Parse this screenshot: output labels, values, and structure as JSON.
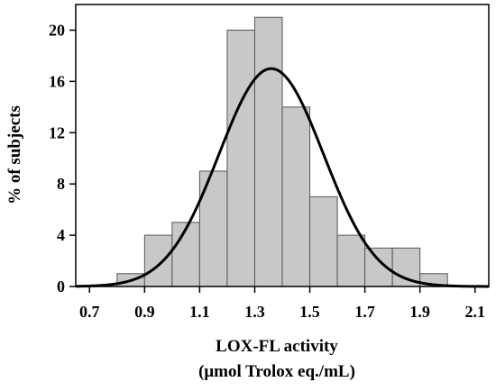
{
  "chart_data": {
    "type": "bar",
    "subtype": "histogram",
    "bins": [
      {
        "x0": 0.8,
        "x1": 0.9,
        "value": 1
      },
      {
        "x0": 0.9,
        "x1": 1.0,
        "value": 4
      },
      {
        "x0": 1.0,
        "x1": 1.1,
        "value": 5
      },
      {
        "x0": 1.1,
        "x1": 1.2,
        "value": 9
      },
      {
        "x0": 1.2,
        "x1": 1.3,
        "value": 20
      },
      {
        "x0": 1.3,
        "x1": 1.4,
        "value": 21
      },
      {
        "x0": 1.4,
        "x1": 1.5,
        "value": 14
      },
      {
        "x0": 1.5,
        "x1": 1.6,
        "value": 7
      },
      {
        "x0": 1.6,
        "x1": 1.7,
        "value": 4
      },
      {
        "x0": 1.7,
        "x1": 1.8,
        "value": 3
      },
      {
        "x0": 1.8,
        "x1": 1.9,
        "value": 3
      },
      {
        "x0": 1.9,
        "x1": 2.0,
        "value": 1
      }
    ],
    "curve": {
      "type": "normal",
      "mean": 1.36,
      "sd": 0.19,
      "peak": 17
    },
    "xlim": [
      0.65,
      2.15
    ],
    "ylim": [
      0,
      22
    ],
    "xticks": [
      "0.7",
      "0.9",
      "1.1",
      "1.3",
      "1.5",
      "1.7",
      "1.9",
      "2.1"
    ],
    "xtick_values": [
      0.7,
      0.9,
      1.1,
      1.3,
      1.5,
      1.7,
      1.9,
      2.1
    ],
    "yticks": [
      "0",
      "4",
      "8",
      "12",
      "16",
      "20"
    ],
    "ytick_values": [
      0,
      4,
      8,
      12,
      16,
      20
    ],
    "xlabel_line1": "LOX-FL activity",
    "xlabel_line2": "(μmol Trolox eq./mL)",
    "ylabel": "%  of subjects",
    "title": "",
    "grid": false,
    "colors": {
      "bar_fill": "#c8c8c8",
      "bar_stroke": "#555555",
      "curve": "#000000",
      "axis": "#000000"
    }
  }
}
